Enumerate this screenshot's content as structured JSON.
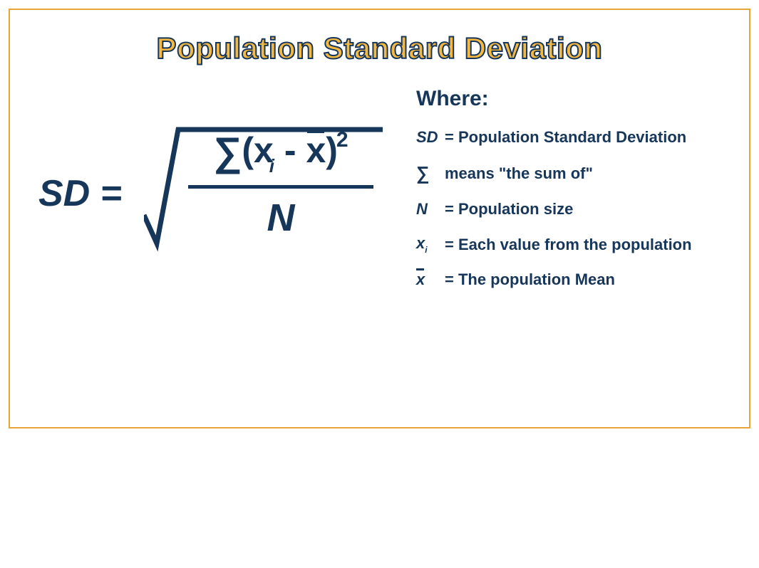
{
  "colors": {
    "border": "#e8a63a",
    "title_fill": "#f5b942",
    "title_stroke": "#16365a",
    "text": "#16365a"
  },
  "title": "Population Standard Deviation",
  "formula": {
    "lhs": "SD =",
    "sigma": "∑",
    "open_paren": "(",
    "x": "x",
    "sub_i": "i",
    "minus": " - ",
    "xbar": "x",
    "close_paren": ")",
    "sup_2": "2",
    "denominator": "N"
  },
  "legend": {
    "heading": "Where:",
    "items": [
      {
        "symbol_html": "SD",
        "symbol_type": "italic",
        "text": "= Population Standard Deviation"
      },
      {
        "symbol_html": "∑",
        "symbol_type": "sigma",
        "text": "means \"the sum of\""
      },
      {
        "symbol_html": "N",
        "symbol_type": "italic",
        "text": "= Population size"
      },
      {
        "symbol_html": "x",
        "symbol_sub": "i",
        "symbol_type": "italic",
        "text": "= Each value from the population"
      },
      {
        "symbol_html": "x",
        "symbol_type": "xbar",
        "text": "= The population Mean"
      }
    ]
  }
}
